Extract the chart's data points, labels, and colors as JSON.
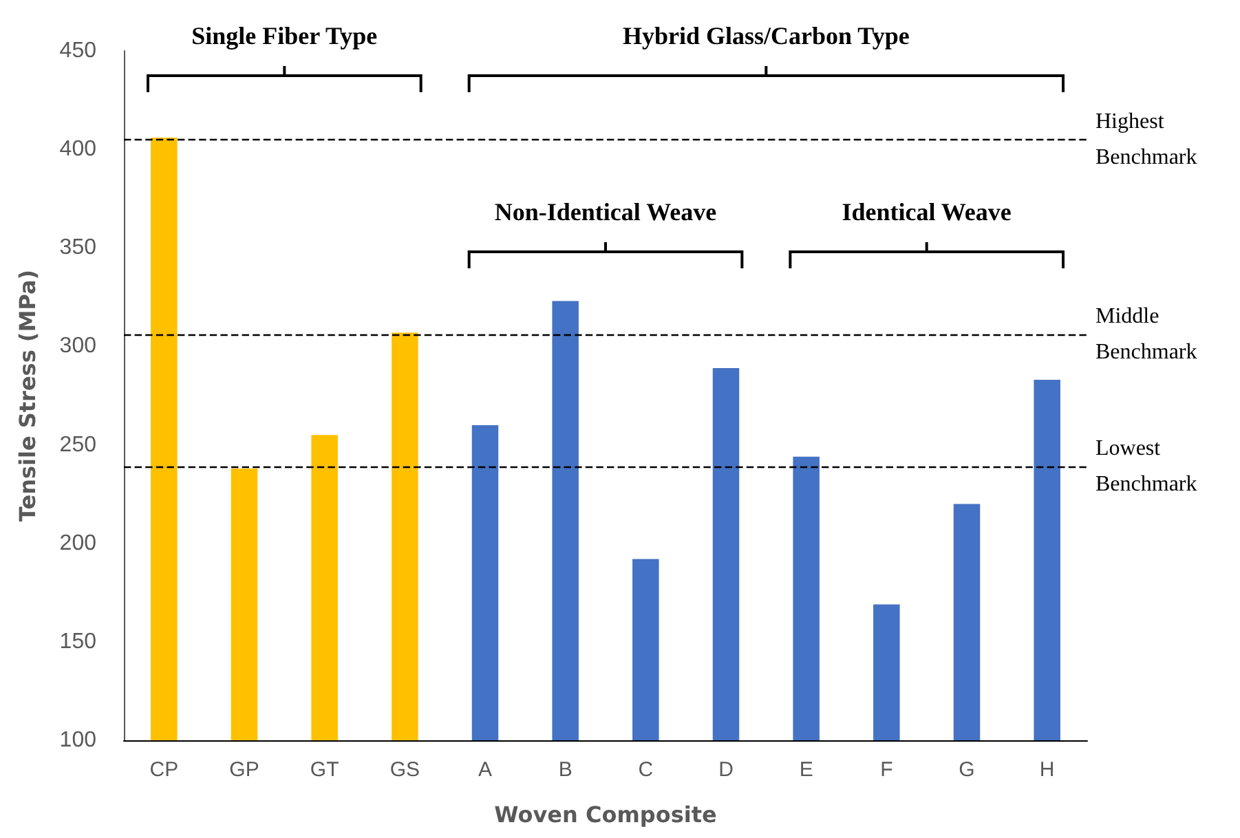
{
  "chart_data": {
    "type": "bar",
    "xlabel": "Woven Composite",
    "ylabel": "Tensile Stress (MPa)",
    "categories": [
      "CP",
      "GP",
      "GT",
      "GS",
      "A",
      "B",
      "C",
      "D",
      "E",
      "F",
      "G",
      "H"
    ],
    "values": [
      406,
      238,
      255,
      307,
      260,
      323,
      192,
      289,
      244,
      169,
      220,
      283
    ],
    "colors": [
      "#ffc000",
      "#ffc000",
      "#ffc000",
      "#ffc000",
      "#4472c4",
      "#4472c4",
      "#4472c4",
      "#4472c4",
      "#4472c4",
      "#4472c4",
      "#4472c4",
      "#4472c4"
    ],
    "ylim": [
      100,
      450
    ],
    "yticks": [
      100,
      150,
      200,
      250,
      300,
      350,
      400,
      450
    ],
    "grid": false,
    "ref_lines": [
      {
        "axis": "y",
        "value": 405,
        "label": "Highest Benchmark",
        "color": "#000000",
        "line_style": "dashed"
      },
      {
        "axis": "y",
        "value": 306,
        "label": "Middle Benchmark",
        "color": "#000000",
        "line_style": "dashed"
      },
      {
        "axis": "y",
        "value": 239,
        "label": "Lowest Benchmark",
        "color": "#000000",
        "line_style": "dashed"
      }
    ],
    "annotations": [
      "Single Fiber Type",
      "Hybrid Glass/Carbon Type",
      "Non-Identical Weave",
      "Identical Weave"
    ]
  }
}
